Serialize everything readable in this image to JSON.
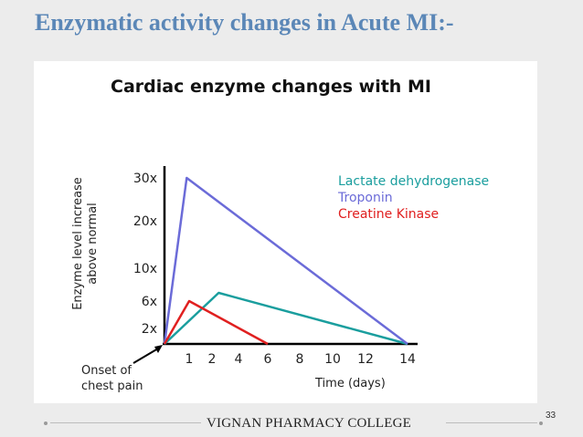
{
  "slide": {
    "title": "Enzymatic activity changes in Acute MI:-",
    "footer": "VIGNAN PHARMACY COLLEGE",
    "page_number": "33"
  },
  "chart_data": {
    "type": "line",
    "title": "Cardiac enzyme changes with MI",
    "ylabel_line1": "Enzyme level increase",
    "ylabel_line2": "above normal",
    "xlabel": "Time (days)",
    "x_ticks": [
      "1",
      "2",
      "4",
      "6",
      "8",
      "10",
      "12",
      "14"
    ],
    "y_ticks": [
      "2x",
      "6x",
      "10x",
      "20x",
      "30x"
    ],
    "annotation_line1": "Onset of",
    "annotation_line2": "chest pain",
    "series": [
      {
        "name": "Lactate dehydrogenase",
        "color": "#1a9e9e",
        "points": [
          [
            0,
            1
          ],
          [
            2.5,
            7
          ],
          [
            14,
            1
          ]
        ]
      },
      {
        "name": "Troponin",
        "color": "#6b6bd8",
        "points": [
          [
            0,
            1
          ],
          [
            0.9,
            30
          ],
          [
            14,
            1
          ]
        ]
      },
      {
        "name": "Creatine Kinase",
        "color": "#e02020",
        "points": [
          [
            0,
            1
          ],
          [
            1,
            6
          ],
          [
            6,
            1
          ]
        ]
      }
    ]
  }
}
